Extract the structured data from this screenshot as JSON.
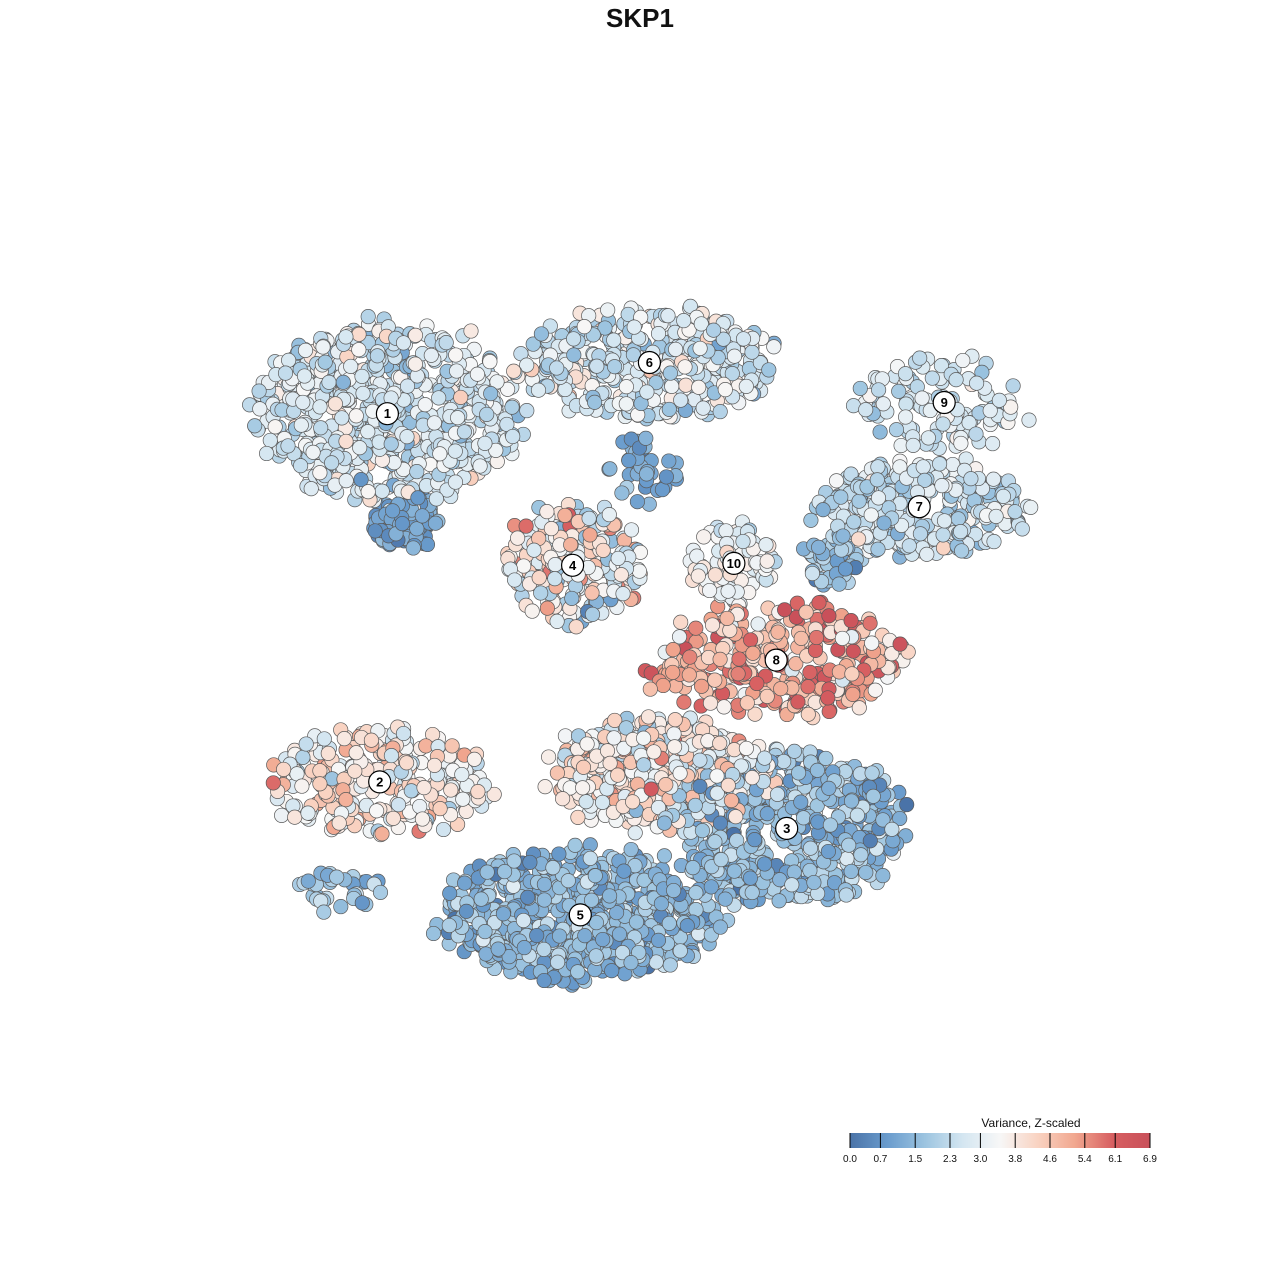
{
  "chart_data": {
    "type": "scatter",
    "title": "SKP1",
    "legend": {
      "title": "Variance, Z-scaled",
      "placement": "bottom-right",
      "ticks": [
        "0.0",
        "0.7",
        "1.5",
        "2.3",
        "3.0",
        "3.8",
        "4.6",
        "5.4",
        "6.1",
        "6.9"
      ],
      "range": [
        0.0,
        6.9
      ],
      "colors": [
        "#4a73a8",
        "#6a9ccd",
        "#9cc4e0",
        "#d4e6f1",
        "#f7f7f7",
        "#f9d3c2",
        "#f1a78f",
        "#d75f61",
        "#c9505a"
      ]
    },
    "grid": false,
    "axes": "hidden",
    "xlim": [
      0,
      100
    ],
    "ylim": [
      0,
      100
    ],
    "clusters": [
      {
        "label": "1",
        "x": 21.6,
        "y": 73.8,
        "spread_x": 13.5,
        "spread_y": 9.5,
        "value": 2.7,
        "value_sd": 0.6,
        "n": 750
      },
      {
        "label": "2",
        "x": 20.8,
        "y": 34.2,
        "spread_x": 11.5,
        "spread_y": 5.5,
        "value": 3.8,
        "value_sd": 0.8,
        "n": 260
      },
      {
        "label": "3",
        "x": 63.2,
        "y": 29.2,
        "spread_x": 12.0,
        "spread_y": 8.0,
        "value": 1.6,
        "value_sd": 0.6,
        "n": 520
      },
      {
        "label": "4",
        "x": 40.9,
        "y": 57.5,
        "spread_x": 7.0,
        "spread_y": 6.5,
        "value": 3.5,
        "value_sd": 1.0,
        "n": 220
      },
      {
        "label": "5",
        "x": 41.7,
        "y": 19.9,
        "spread_x": 14.5,
        "spread_y": 7.0,
        "value": 1.5,
        "value_sd": 0.5,
        "n": 720
      },
      {
        "label": "6",
        "x": 48.9,
        "y": 79.3,
        "spread_x": 13.0,
        "spread_y": 6.0,
        "value": 2.8,
        "value_sd": 0.7,
        "n": 420
      },
      {
        "label": "7",
        "x": 77.0,
        "y": 63.8,
        "spread_x": 11.0,
        "spread_y": 5.0,
        "value": 2.4,
        "value_sd": 0.6,
        "n": 300
      },
      {
        "label": "8",
        "x": 62.1,
        "y": 47.3,
        "spread_x": 13.0,
        "spread_y": 6.0,
        "value": 5.0,
        "value_sd": 0.9,
        "n": 320
      },
      {
        "label": "9",
        "x": 79.6,
        "y": 75.0,
        "spread_x": 9.0,
        "spread_y": 5.0,
        "value": 2.6,
        "value_sd": 0.5,
        "n": 120
      },
      {
        "label": "10",
        "x": 57.7,
        "y": 57.7,
        "spread_x": 4.5,
        "spread_y": 4.0,
        "value": 3.2,
        "value_sd": 0.5,
        "n": 80
      },
      {
        "label": "",
        "x": 50.0,
        "y": 35.0,
        "spread_x": 11.0,
        "spread_y": 6.0,
        "value": 3.4,
        "value_sd": 0.9,
        "n": 500
      },
      {
        "label": "",
        "x": 47.8,
        "y": 67.8,
        "spread_x": 4.0,
        "spread_y": 4.0,
        "value": 1.2,
        "value_sd": 0.4,
        "n": 40
      },
      {
        "label": "",
        "x": 67.8,
        "y": 58.0,
        "spread_x": 3.0,
        "spread_y": 3.0,
        "value": 1.5,
        "value_sd": 0.5,
        "n": 50
      },
      {
        "label": "",
        "x": 23.5,
        "y": 62.0,
        "spread_x": 3.5,
        "spread_y": 3.0,
        "value": 1.0,
        "value_sd": 0.4,
        "n": 110
      },
      {
        "label": "",
        "x": 16.5,
        "y": 22.6,
        "spread_x": 4.5,
        "spread_y": 2.5,
        "value": 1.8,
        "value_sd": 0.5,
        "n": 35
      }
    ]
  }
}
